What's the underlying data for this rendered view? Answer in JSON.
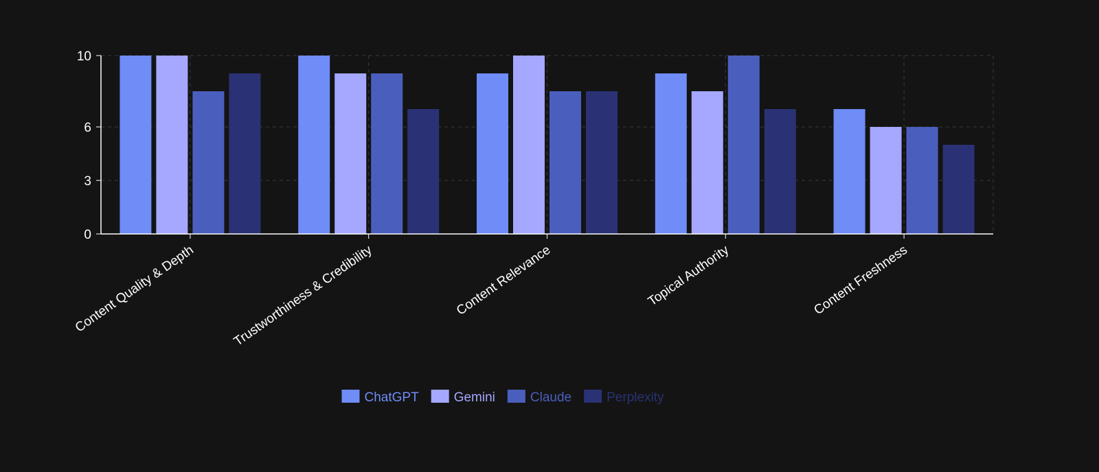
{
  "chart_data": {
    "type": "bar",
    "categories": [
      "Content Quality & Depth",
      "Trustworthiness & Credibility",
      "Content Relevance",
      "Topical Authority",
      "Content Freshness"
    ],
    "series": [
      {
        "name": "ChatGPT",
        "color": "#6f8cf7",
        "values": [
          10,
          10,
          9,
          9,
          7
        ]
      },
      {
        "name": "Gemini",
        "color": "#a5a8fe",
        "values": [
          10,
          9,
          10,
          8,
          6
        ]
      },
      {
        "name": "Claude",
        "color": "#4a5fbd",
        "values": [
          8,
          9,
          8,
          10,
          6
        ]
      },
      {
        "name": "Perplexity",
        "color": "#2a3275",
        "values": [
          9,
          7,
          8,
          7,
          5
        ]
      }
    ],
    "ylim": [
      0,
      10
    ],
    "yticks": [
      0,
      3,
      6,
      10
    ],
    "grid": true,
    "legend": "bottom"
  }
}
